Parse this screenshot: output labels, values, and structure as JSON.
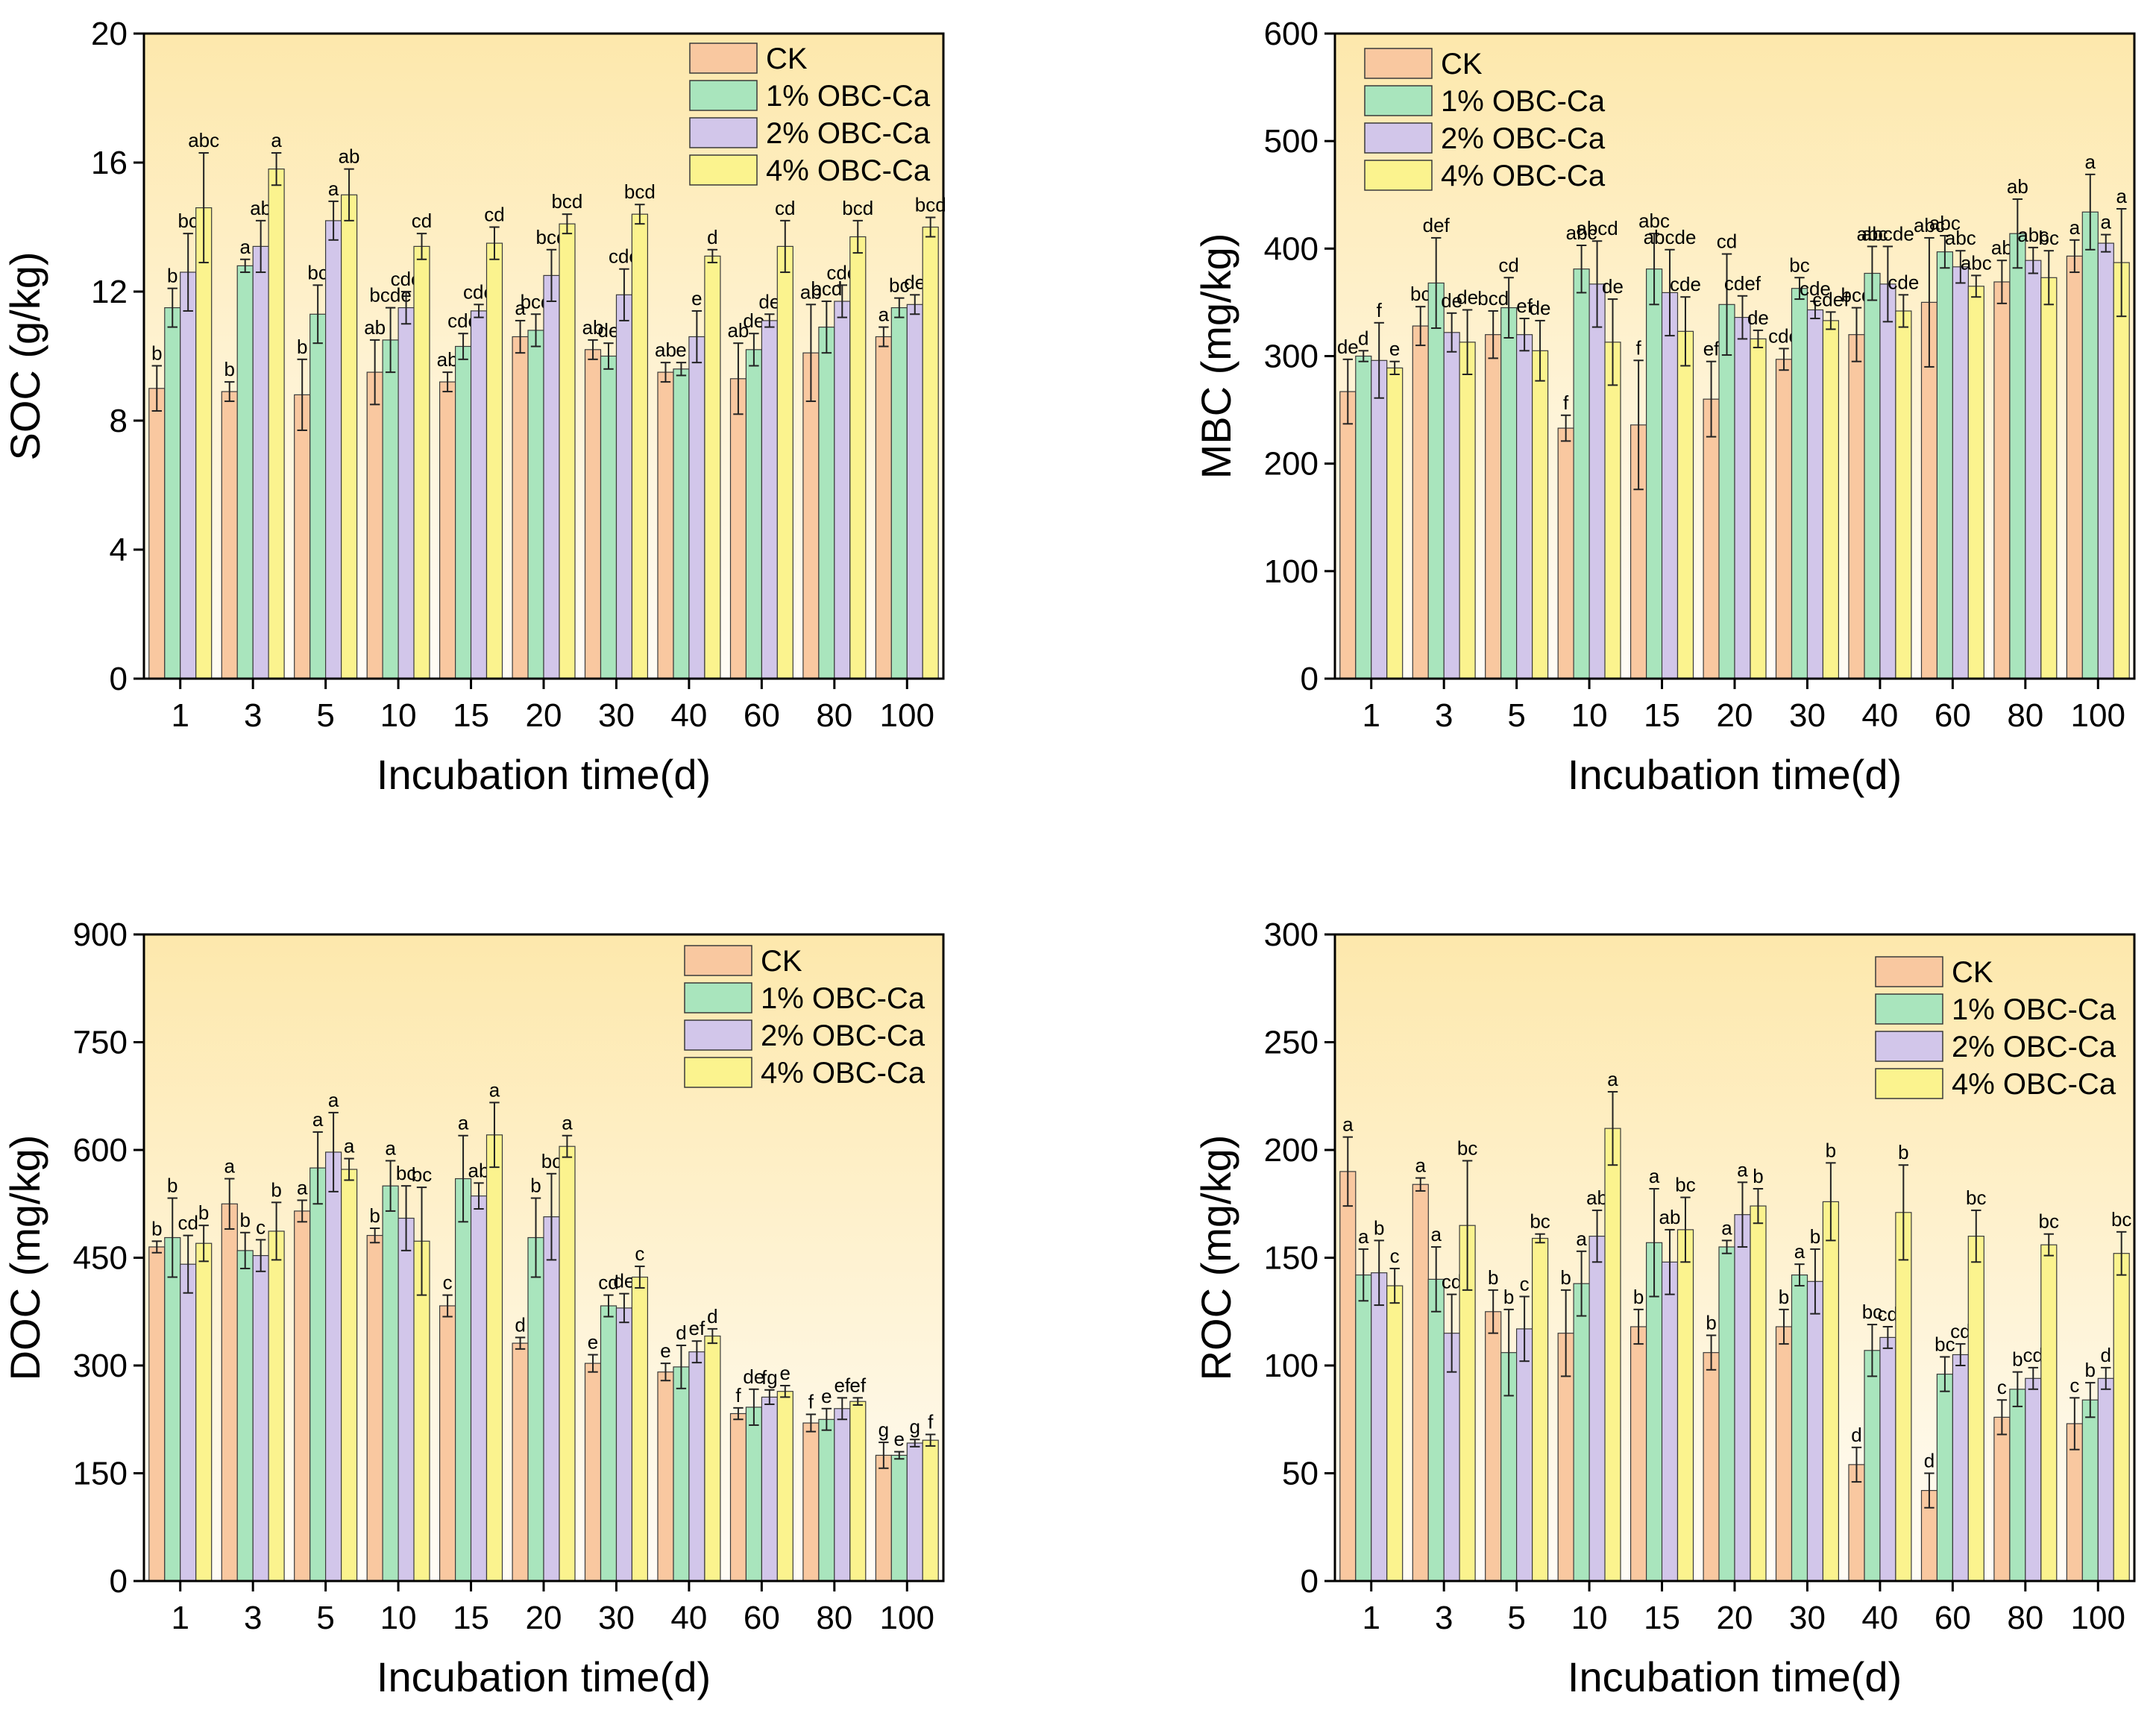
{
  "colors": {
    "series": [
      "#f9c8a0",
      "#a9e5bd",
      "#d2c6ea",
      "#fbf38e"
    ],
    "bg_top": "#fde8ac",
    "bg_bottom": "#fffcf6",
    "axis": "#000000",
    "error": "#222222"
  },
  "chart_data": [
    {
      "type": "bar",
      "title": "",
      "xlabel": "Incubation time(d)",
      "ylabel": "SOC (g/kg)",
      "ylim": [
        0,
        20
      ],
      "yticks": [
        "0",
        "4",
        "8",
        "12",
        "16",
        "20"
      ],
      "ytick_values": [
        0,
        4,
        8,
        12,
        16,
        20
      ],
      "legend_position": "top-right",
      "categories": [
        "1",
        "3",
        "5",
        "10",
        "15",
        "20",
        "30",
        "40",
        "60",
        "80",
        "100"
      ],
      "series": [
        {
          "name": "CK",
          "values": [
            9.0,
            8.9,
            8.8,
            9.5,
            9.2,
            10.6,
            10.2,
            9.5,
            9.3,
            10.1,
            10.6
          ],
          "errors": [
            0.7,
            0.3,
            1.1,
            1.0,
            0.3,
            0.5,
            0.3,
            0.3,
            1.1,
            1.5,
            0.3
          ],
          "letters": [
            "b",
            "b",
            "b",
            "ab",
            "ab",
            "a",
            "ab",
            "ab",
            "ab",
            "ab",
            "a"
          ]
        },
        {
          "name": "1% OBC-Ca",
          "values": [
            11.5,
            12.8,
            11.3,
            10.5,
            10.3,
            10.8,
            10.0,
            9.6,
            10.2,
            10.9,
            11.5
          ],
          "errors": [
            0.6,
            0.2,
            0.9,
            1.0,
            0.4,
            0.5,
            0.4,
            0.2,
            0.5,
            0.8,
            0.3
          ],
          "letters": [
            "b",
            "a",
            "bc",
            "bcde",
            "cde",
            "bcd",
            "de",
            "e",
            "de",
            "bcd",
            "bc"
          ]
        },
        {
          "name": "2% OBC-Ca",
          "values": [
            12.6,
            13.4,
            14.2,
            11.5,
            11.4,
            12.5,
            11.9,
            10.6,
            11.1,
            11.7,
            11.6
          ],
          "errors": [
            1.2,
            0.8,
            0.6,
            0.5,
            0.2,
            0.8,
            0.8,
            0.8,
            0.2,
            0.5,
            0.3
          ],
          "letters": [
            "bc",
            "ab",
            "a",
            "cde",
            "cde",
            "bcd",
            "cde",
            "e",
            "de",
            "cde",
            "de"
          ]
        },
        {
          "name": "4% OBC-Ca",
          "values": [
            14.6,
            15.8,
            15.0,
            13.4,
            13.5,
            14.1,
            14.4,
            13.1,
            13.4,
            13.7,
            14.0
          ],
          "errors": [
            1.7,
            0.5,
            0.8,
            0.4,
            0.5,
            0.3,
            0.3,
            0.2,
            0.8,
            0.5,
            0.3
          ],
          "letters": [
            "abc",
            "a",
            "ab",
            "cd",
            "cd",
            "bcd",
            "bcd",
            "d",
            "cd",
            "bcd",
            "bcd"
          ]
        }
      ]
    },
    {
      "type": "bar",
      "title": "",
      "xlabel": "Incubation time(d)",
      "ylabel": "MBC (mg/kg)",
      "ylim": [
        0,
        600
      ],
      "yticks": [
        "0",
        "100",
        "200",
        "300",
        "400",
        "500",
        "600"
      ],
      "ytick_values": [
        0,
        100,
        200,
        300,
        400,
        500,
        600
      ],
      "legend_position": "top-left",
      "categories": [
        "1",
        "3",
        "5",
        "10",
        "15",
        "20",
        "30",
        "40",
        "60",
        "80",
        "100"
      ],
      "series": [
        {
          "name": "CK",
          "values": [
            267,
            328,
            320,
            233,
            236,
            260,
            297,
            320,
            350,
            369,
            393
          ],
          "errors": [
            30,
            18,
            22,
            12,
            60,
            35,
            10,
            25,
            60,
            20,
            15
          ],
          "letters": [
            "de",
            "bc",
            "bcd",
            "f",
            "f",
            "ef",
            "cde",
            "bcd",
            "abc",
            "ab",
            "a"
          ]
        },
        {
          "name": "1% OBC-Ca",
          "values": [
            300,
            368,
            345,
            381,
            381,
            348,
            363,
            377,
            397,
            414,
            434
          ],
          "errors": [
            5,
            42,
            28,
            22,
            33,
            47,
            10,
            25,
            15,
            32,
            35
          ],
          "letters": [
            "d",
            "def",
            "cd",
            "abc",
            "abc",
            "cd",
            "bc",
            "abc",
            "abc",
            "ab",
            "a"
          ]
        },
        {
          "name": "2% OBC-Ca",
          "values": [
            296,
            322,
            320,
            367,
            359,
            336,
            343,
            367,
            383,
            389,
            405
          ],
          "errors": [
            35,
            18,
            15,
            40,
            40,
            20,
            8,
            35,
            15,
            12,
            8
          ],
          "letters": [
            "f",
            "de",
            "ef",
            "abcd",
            "abcde",
            "cdef",
            "cde",
            "abcde",
            "abc",
            "abc",
            "a"
          ]
        },
        {
          "name": "4% OBC-Ca",
          "values": [
            289,
            313,
            305,
            313,
            323,
            316,
            333,
            342,
            365,
            373,
            387
          ],
          "errors": [
            6,
            30,
            28,
            40,
            32,
            8,
            8,
            15,
            10,
            25,
            50
          ],
          "letters": [
            "e",
            "de",
            "de",
            "de",
            "cde",
            "de",
            "cdef",
            "cde",
            "abc",
            "bc",
            "a"
          ]
        }
      ]
    },
    {
      "type": "bar",
      "title": "",
      "xlabel": "Incubation time(d)",
      "ylabel": "DOC (mg/kg)",
      "ylim": [
        0,
        900
      ],
      "yticks": [
        "0",
        "150",
        "300",
        "450",
        "600",
        "750",
        "900"
      ],
      "ytick_values": [
        0,
        150,
        300,
        450,
        600,
        750,
        900
      ],
      "legend_position": "top-right",
      "categories": [
        "1",
        "3",
        "5",
        "10",
        "15",
        "20",
        "30",
        "40",
        "60",
        "80",
        "100"
      ],
      "series": [
        {
          "name": "CK",
          "values": [
            465,
            525,
            515,
            481,
            383,
            331,
            303,
            291,
            233,
            220,
            175
          ],
          "errors": [
            8,
            35,
            15,
            10,
            15,
            8,
            12,
            12,
            8,
            12,
            18
          ],
          "letters": [
            "b",
            "a",
            "a",
            "b",
            "c",
            "d",
            "e",
            "e",
            "f",
            "f",
            "g"
          ]
        },
        {
          "name": "1% OBC-Ca",
          "values": [
            478,
            460,
            575,
            550,
            560,
            478,
            383,
            298,
            242,
            225,
            175
          ],
          "errors": [
            55,
            25,
            50,
            35,
            60,
            55,
            15,
            30,
            25,
            15,
            5
          ],
          "letters": [
            "b",
            "b",
            "a",
            "a",
            "a",
            "b",
            "cd",
            "d",
            "de",
            "e",
            "e"
          ]
        },
        {
          "name": "2% OBC-Ca",
          "values": [
            441,
            453,
            597,
            505,
            536,
            507,
            380,
            319,
            256,
            240,
            192
          ],
          "errors": [
            40,
            22,
            55,
            45,
            18,
            60,
            20,
            15,
            10,
            15,
            5
          ],
          "letters": [
            "cd",
            "c",
            "a",
            "bc",
            "ab",
            "bc",
            "de",
            "ef",
            "fg",
            "ef",
            "g"
          ]
        },
        {
          "name": "4% OBC-Ca",
          "values": [
            470,
            487,
            573,
            473,
            621,
            605,
            423,
            341,
            264,
            250,
            196
          ],
          "errors": [
            25,
            40,
            15,
            75,
            45,
            15,
            15,
            10,
            8,
            5,
            8
          ],
          "letters": [
            "b",
            "b",
            "a",
            "bc",
            "a",
            "a",
            "c",
            "d",
            "e",
            "ef",
            "f"
          ]
        }
      ]
    },
    {
      "type": "bar",
      "title": "",
      "xlabel": "Incubation time(d)",
      "ylabel": "ROC (mg/kg)",
      "ylim": [
        0,
        300
      ],
      "yticks": [
        "0",
        "50",
        "100",
        "150",
        "200",
        "250",
        "300"
      ],
      "ytick_values": [
        0,
        50,
        100,
        150,
        200,
        250,
        300
      ],
      "legend_position": "top-right",
      "categories": [
        "1",
        "3",
        "5",
        "10",
        "15",
        "20",
        "30",
        "40",
        "60",
        "80",
        "100"
      ],
      "series": [
        {
          "name": "CK",
          "values": [
            190,
            184,
            125,
            115,
            118,
            106,
            118,
            54,
            42,
            76,
            73
          ],
          "errors": [
            16,
            3,
            10,
            20,
            8,
            8,
            8,
            8,
            8,
            8,
            12
          ],
          "letters": [
            "a",
            "a",
            "b",
            "b",
            "b",
            "b",
            "b",
            "d",
            "d",
            "c",
            "c"
          ]
        },
        {
          "name": "1% OBC-Ca",
          "values": [
            142,
            140,
            106,
            138,
            157,
            155,
            142,
            107,
            96,
            89,
            84
          ],
          "errors": [
            12,
            15,
            20,
            15,
            25,
            3,
            5,
            12,
            8,
            8,
            8
          ],
          "letters": [
            "a",
            "a",
            "b",
            "a",
            "a",
            "a",
            "a",
            "bc",
            "bc",
            "b",
            "b"
          ]
        },
        {
          "name": "2% OBC-Ca",
          "values": [
            143,
            115,
            117,
            160,
            148,
            170,
            139,
            113,
            105,
            94,
            94
          ],
          "errors": [
            15,
            18,
            15,
            12,
            15,
            15,
            15,
            5,
            5,
            5,
            5
          ],
          "letters": [
            "b",
            "cd",
            "c",
            "ab",
            "ab",
            "a",
            "b",
            "cd",
            "cd",
            "cd",
            "d"
          ]
        },
        {
          "name": "4% OBC-Ca",
          "values": [
            137,
            165,
            159,
            210,
            163,
            174,
            176,
            171,
            160,
            156,
            152
          ],
          "errors": [
            8,
            30,
            2,
            17,
            15,
            8,
            18,
            22,
            12,
            5,
            10
          ],
          "letters": [
            "c",
            "bc",
            "bc",
            "a",
            "bc",
            "b",
            "b",
            "b",
            "bc",
            "bc",
            "bc"
          ]
        }
      ]
    }
  ]
}
